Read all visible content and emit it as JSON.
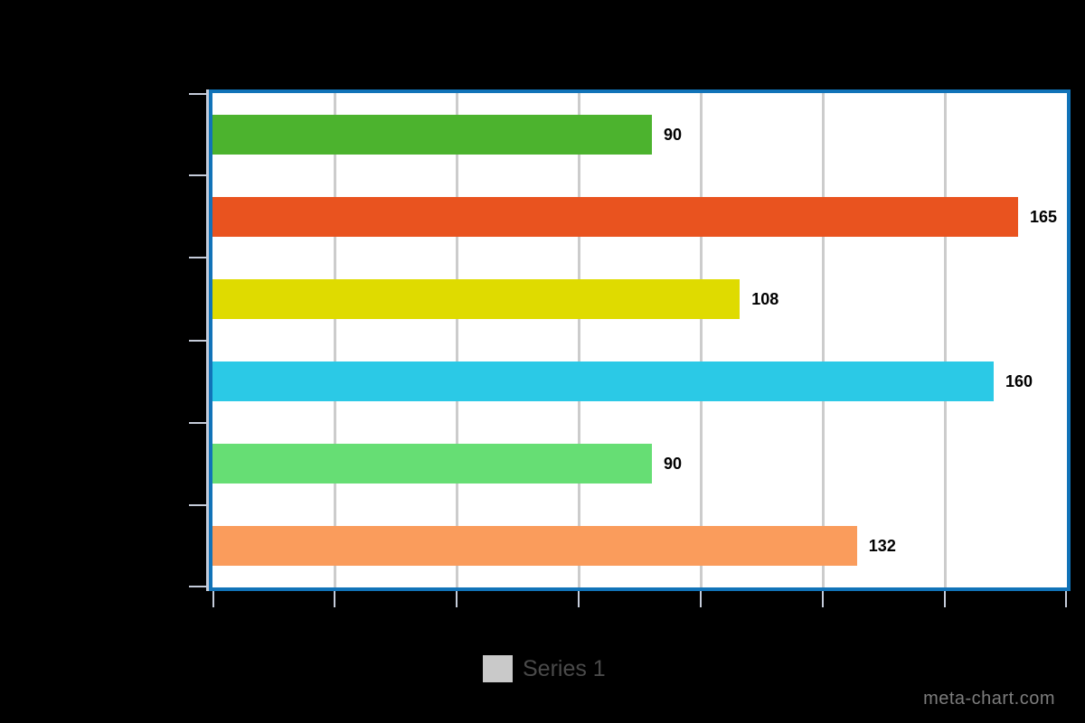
{
  "watermark": "meta-chart.com",
  "legend": {
    "label": "Series 1",
    "swatch_color": "#C9C9C9"
  },
  "chart_data": {
    "type": "bar",
    "orientation": "horizontal",
    "title": "",
    "xlabel": "",
    "ylabel": "",
    "categories": [
      "",
      "",
      "",
      "",
      "",
      ""
    ],
    "series": [
      {
        "name": "Series 1",
        "values": [
          90,
          165,
          108,
          160,
          90,
          132
        ]
      }
    ],
    "bar_colors": [
      "#4CB32E",
      "#E9531F",
      "#DFDB00",
      "#2BC9E6",
      "#66DE74",
      "#FA9C5C"
    ],
    "xlim": [
      0,
      175
    ],
    "x_tick_step": 25,
    "grid": true,
    "value_labels": true,
    "legend_position": "bottom"
  },
  "colors": {
    "background": "#000000",
    "plot_background": "#FFFFFF",
    "plot_border": "#1173B8",
    "gridline": "#CCCCCC",
    "axis_tick": "#C5CCDA",
    "value_label": "#000000",
    "legend_text": "#4A4A4A",
    "watermark": "#7D7D7D"
  }
}
